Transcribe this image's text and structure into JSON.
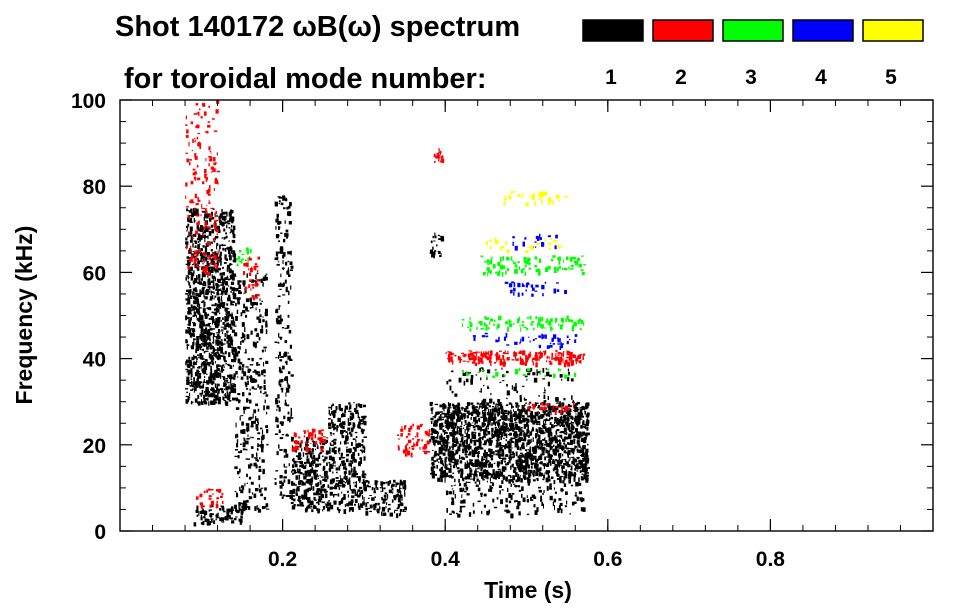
{
  "chart_data": {
    "type": "heatmap",
    "title_line1": "Shot 140172 ωB(ω) spectrum",
    "title_line2": "for toroidal mode number:",
    "xlabel": "Time (s)",
    "ylabel": "Frequency (kHz)",
    "xlim": [
      0.0,
      1.0
    ],
    "ylim": [
      0,
      100
    ],
    "x_ticks": [
      {
        "value": 0.2,
        "label": "0.2"
      },
      {
        "value": 0.4,
        "label": "0.4"
      },
      {
        "value": 0.6,
        "label": "0.6"
      },
      {
        "value": 0.8,
        "label": "0.8"
      }
    ],
    "y_ticks": [
      {
        "value": 0,
        "label": "0"
      },
      {
        "value": 20,
        "label": "20"
      },
      {
        "value": 40,
        "label": "40"
      },
      {
        "value": 60,
        "label": "60"
      },
      {
        "value": 80,
        "label": "80"
      },
      {
        "value": 100,
        "label": "100"
      }
    ],
    "legend": [
      {
        "label": "1",
        "color": "#000000"
      },
      {
        "label": "2",
        "color": "#ff0000"
      },
      {
        "label": "3",
        "color": "#00ff00"
      },
      {
        "label": "4",
        "color": "#0000ff"
      },
      {
        "label": "5",
        "color": "#ffff00"
      }
    ],
    "regions": [
      {
        "mode": 1,
        "t": [
          0.08,
          0.14
        ],
        "f": [
          30,
          75
        ],
        "density": 0.7
      },
      {
        "mode": 1,
        "t": [
          0.09,
          0.15
        ],
        "f": [
          2,
          6
        ],
        "density": 0.6
      },
      {
        "mode": 1,
        "t": [
          0.14,
          0.18
        ],
        "f": [
          5,
          60
        ],
        "density": 0.25
      },
      {
        "mode": 1,
        "t": [
          0.19,
          0.21
        ],
        "f": [
          8,
          78
        ],
        "density": 0.25
      },
      {
        "mode": 1,
        "t": [
          0.21,
          0.255
        ],
        "f": [
          5,
          22
        ],
        "density": 0.55
      },
      {
        "mode": 1,
        "t": [
          0.255,
          0.3
        ],
        "f": [
          5,
          30
        ],
        "density": 0.5
      },
      {
        "mode": 1,
        "t": [
          0.3,
          0.35
        ],
        "f": [
          4,
          12
        ],
        "density": 0.5
      },
      {
        "mode": 1,
        "t": [
          0.38,
          0.395
        ],
        "f": [
          64,
          70
        ],
        "density": 0.5
      },
      {
        "mode": 1,
        "t": [
          0.38,
          0.575
        ],
        "f": [
          12,
          30
        ],
        "density": 0.85
      },
      {
        "mode": 1,
        "t": [
          0.4,
          0.57
        ],
        "f": [
          4,
          12
        ],
        "density": 0.2
      },
      {
        "mode": 1,
        "t": [
          0.4,
          0.56
        ],
        "f": [
          30,
          38
        ],
        "density": 0.12
      },
      {
        "mode": 2,
        "t": [
          0.08,
          0.12
        ],
        "f": [
          60,
          100
        ],
        "density": 0.18
      },
      {
        "mode": 2,
        "t": [
          0.15,
          0.17
        ],
        "f": [
          54,
          64
        ],
        "density": 0.3
      },
      {
        "mode": 2,
        "t": [
          0.21,
          0.25
        ],
        "f": [
          19,
          24
        ],
        "density": 0.45
      },
      {
        "mode": 2,
        "t": [
          0.34,
          0.38
        ],
        "f": [
          18,
          25
        ],
        "density": 0.35
      },
      {
        "mode": 2,
        "t": [
          0.385,
          0.395
        ],
        "f": [
          85,
          89
        ],
        "density": 0.7
      },
      {
        "mode": 2,
        "t": [
          0.4,
          0.57
        ],
        "f": [
          39,
          42
        ],
        "density": 0.7
      },
      {
        "mode": 2,
        "t": [
          0.5,
          0.56
        ],
        "f": [
          28,
          30
        ],
        "density": 0.3
      },
      {
        "mode": 2,
        "t": [
          0.09,
          0.13
        ],
        "f": [
          6,
          10
        ],
        "density": 0.3
      },
      {
        "mode": 3,
        "t": [
          0.42,
          0.57
        ],
        "f": [
          47,
          50
        ],
        "density": 0.35
      },
      {
        "mode": 3,
        "t": [
          0.44,
          0.57
        ],
        "f": [
          60,
          64
        ],
        "density": 0.3
      },
      {
        "mode": 3,
        "t": [
          0.42,
          0.56
        ],
        "f": [
          36,
          38
        ],
        "density": 0.15
      },
      {
        "mode": 3,
        "t": [
          0.14,
          0.16
        ],
        "f": [
          62,
          66
        ],
        "density": 0.3
      },
      {
        "mode": 4,
        "t": [
          0.43,
          0.56
        ],
        "f": [
          43,
          46
        ],
        "density": 0.2
      },
      {
        "mode": 4,
        "t": [
          0.46,
          0.55
        ],
        "f": [
          55,
          58
        ],
        "density": 0.2
      },
      {
        "mode": 4,
        "t": [
          0.48,
          0.54
        ],
        "f": [
          66,
          69
        ],
        "density": 0.15
      },
      {
        "mode": 5,
        "t": [
          0.45,
          0.55
        ],
        "f": [
          65,
          68
        ],
        "density": 0.15
      },
      {
        "mode": 5,
        "t": [
          0.47,
          0.55
        ],
        "f": [
          76,
          79
        ],
        "density": 0.25
      }
    ]
  }
}
